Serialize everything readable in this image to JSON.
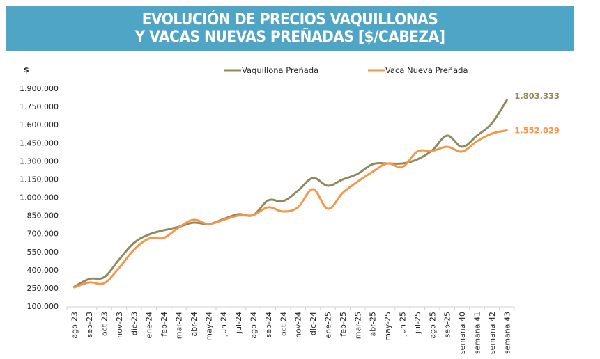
{
  "header": {
    "title_line1": "EVOLUCIÓN DE PRECIOS VAQUILLONAS",
    "title_line2": "Y VACAS NUEVAS PREÑADAS [$/CABEZA]"
  },
  "colors": {
    "header_bg": "#4FA5C6",
    "vaquillona": "#8E8B5B",
    "vaca": "#F5964A",
    "axis": "#D0D0D0",
    "text": "#222222"
  },
  "chart_data": {
    "type": "line",
    "title": "EVOLUCIÓN DE PRECIOS VAQUILLONAS Y VACAS NUEVAS PREÑADAS [$/CABEZA]",
    "ylabel": "$",
    "xlabel": "",
    "ylim": [
      100000,
      1900000
    ],
    "yticks": [
      100000,
      250000,
      400000,
      550000,
      700000,
      850000,
      1000000,
      1150000,
      1300000,
      1450000,
      1600000,
      1750000,
      1900000
    ],
    "ytick_labels": [
      "100.000",
      "250.000",
      "400.000",
      "550.000",
      "700.000",
      "850.000",
      "1.000.000",
      "1.150.000",
      "1.300.000",
      "1.450.000",
      "1.600.000",
      "1.750.000",
      "1.900.000"
    ],
    "grid": false,
    "smooth": true,
    "legend_position": "top",
    "categories": [
      "ago-23",
      "sep-23",
      "oct-23",
      "nov-23",
      "dic-23",
      "ene-24",
      "feb-24",
      "mar-24",
      "abr-24",
      "may-24",
      "jun-24",
      "jul-24",
      "ago-24",
      "sep-24",
      "oct-24",
      "nov-24",
      "dic-24",
      "ene-25",
      "feb-25",
      "mar-25",
      "abr-25",
      "may-25",
      "jun-25",
      "jul-25",
      "ago-25",
      "sep-25",
      "semana 40",
      "semana 41",
      "semana 42",
      "semana 43"
    ],
    "series": [
      {
        "name": "Vaquillona Preñada",
        "color": "#8E8B5B",
        "values": [
          261000,
          325000,
          340000,
          485000,
          623000,
          692000,
          727000,
          755000,
          790000,
          778000,
          819000,
          860000,
          853000,
          974000,
          968000,
          1055000,
          1158000,
          1095000,
          1147000,
          1193000,
          1273000,
          1279000,
          1279000,
          1313000,
          1388000,
          1509000,
          1417000,
          1509000,
          1612000,
          1803333
        ],
        "end_label": "1.803.333"
      },
      {
        "name": "Vaca Nueva Preñada",
        "color": "#F5964A",
        "values": [
          255000,
          296000,
          290000,
          416000,
          566000,
          658000,
          664000,
          750000,
          813000,
          778000,
          813000,
          848000,
          853000,
          917000,
          882000,
          917000,
          1066000,
          905000,
          1037000,
          1129000,
          1210000,
          1279000,
          1250000,
          1377000,
          1382000,
          1417000,
          1377000,
          1463000,
          1526000,
          1552029
        ],
        "end_label": "1.552.029"
      }
    ]
  }
}
